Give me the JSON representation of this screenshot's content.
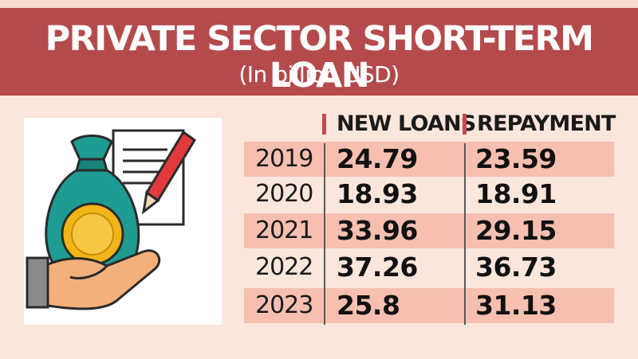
{
  "header": {
    "title": "PRIVATE SECTOR SHORT-TERM LOAN",
    "subtitle": "(In billion USD)"
  },
  "colors": {
    "header_bg": "#b44a4c",
    "row_shade": "#f6bfb0",
    "page_bg": "#fbe6dc",
    "accent": "#c24a4c",
    "bag": "#1e9c91",
    "coin": "#f2b417"
  },
  "illustration": {
    "icons": [
      "money-bag-icon",
      "coin-icon",
      "hand-icon",
      "document-icon",
      "pencil-icon"
    ]
  },
  "chart_data": {
    "type": "table",
    "title": "PRIVATE SECTOR SHORT-TERM LOAN",
    "subtitle": "(In billion USD)",
    "columns": [
      "NEW LOANS",
      "REPAYMENT"
    ],
    "rows": [
      {
        "year": "2019",
        "new_loans": "24.79",
        "repayment": "23.59"
      },
      {
        "year": "2020",
        "new_loans": "18.93",
        "repayment": "18.91"
      },
      {
        "year": "2021",
        "new_loans": "33.96",
        "repayment": "29.15"
      },
      {
        "year": "2022",
        "new_loans": "37.26",
        "repayment": "36.73"
      },
      {
        "year": "2023",
        "new_loans": "25.8",
        "repayment": "31.13"
      }
    ]
  }
}
